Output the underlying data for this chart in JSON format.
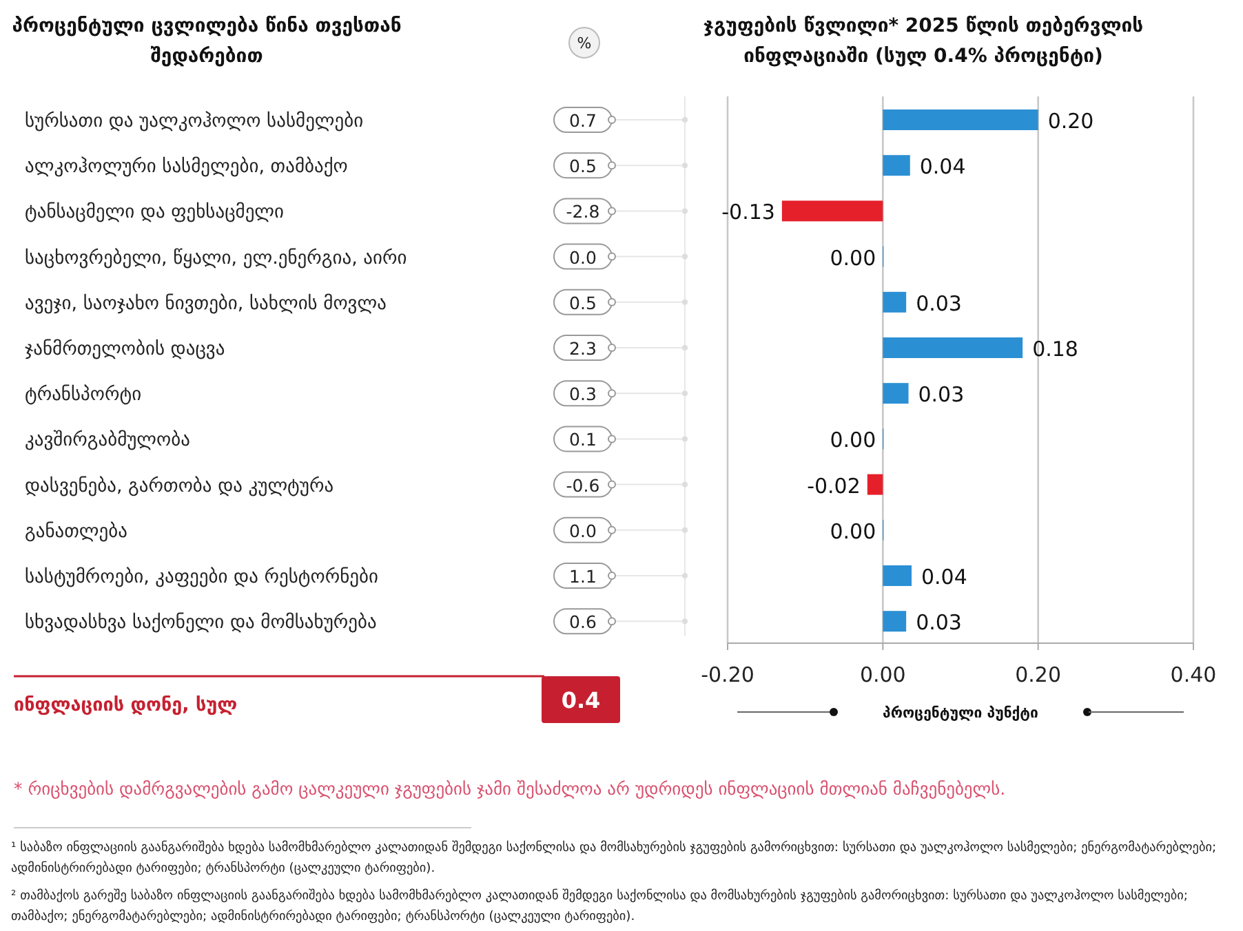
{
  "chart_data": [
    {
      "type": "other",
      "title": "პროცენტული ცვლილება წინა თვესთან შედარებით",
      "categories": [
        "სურსათი და უალკოჰოლო სასმელები",
        "ალკოჰოლური სასმელები, თამბაქო",
        "ტანსაცმელი და ფეხსაცმელი",
        "საცხოვრებელი, წყალი, ელ.ენერგია, აირი",
        "ავეჯი, საოჯახო ნივთები, სახლის მოვლა",
        "ჯანმრთელობის დაცვა",
        "ტრანსპორტი",
        "კავშირგაბმულობა",
        "დასვენება, გართობა და კულტურა",
        "განათლება",
        "სასტუმროები, კაფეები და რესტორნები",
        "სხვადასხვა საქონელი და მომსახურება"
      ],
      "values": [
        0.7,
        0.5,
        -2.8,
        0.0,
        0.5,
        2.3,
        0.3,
        0.1,
        -0.6,
        0.0,
        1.1,
        0.6
      ],
      "value_labels": [
        "0.7",
        "0.5",
        "-2.8",
        "0.0",
        "0.5",
        "2.3",
        "0.3",
        "0.1",
        "-0.6",
        "0.0",
        "1.1",
        "0.6"
      ],
      "annotations": [
        "%",
        "ინფლაციის დონე, სულ",
        "0.4"
      ]
    },
    {
      "type": "bar",
      "orientation": "horizontal",
      "title": "ჯგუფების წვლილი* 2025 წლის თებერვლის ინფლაციაში (სულ 0.4% პროცენტი)",
      "categories": [
        null,
        null,
        null,
        null,
        null,
        null,
        null,
        null,
        null,
        null,
        null,
        null
      ],
      "tick_labels": "x",
      "values": [
        0.2,
        0.035,
        -0.13,
        0.0,
        0.03,
        0.18,
        0.033,
        0.0,
        -0.02,
        0.0,
        0.037,
        0.03
      ],
      "value_labels": [
        "0.20",
        "0.04",
        "-0.13",
        "0.00",
        "0.03",
        "0.18",
        "0.03",
        "0.00",
        "-0.02",
        "0.00",
        "0.04",
        "0.03"
      ],
      "colors": [
        "#2b8fd4",
        "#2b8fd4",
        "#e5202b",
        "#2b8fd4",
        "#2b8fd4",
        "#2b8fd4",
        "#2b8fd4",
        "#2b8fd4",
        "#e5202b",
        "#2b8fd4",
        "#2b8fd4",
        "#2b8fd4"
      ],
      "xlim": [
        -0.2,
        0.4
      ],
      "xticks": [
        {
          "value": -0.2,
          "label": "-0.20"
        },
        {
          "value": 0,
          "label": "0.00"
        },
        {
          "value": 0.2,
          "label": "0.20"
        },
        {
          "value": 0.4,
          "label": "0.40"
        }
      ],
      "grid": "x",
      "xlabel": "პროცენტული პუნქტი",
      "annotations": [
        "* რიცხვების დამრგვალების გამო ცალკეული ჯგუფების ჯამი შესაძლოა არ უდრიდეს ინფლაციის მთლიან მაჩვენებელს.",
        "¹ საბაზო ინფლაციის გაანგარიშება ხდება სამომხმარებლო კალათიდან შემდეგი საქონლისა და მომსახურების ჯგუფების გამორიცხვით: სურსათი და უალკოჰოლო სასმელები; ენერგომატარებლები; ადმინისტრირებადი ტარიფები; ტრანსპორტი (ცალკეული ტარიფები).",
        "² თამბაქოს გარეშე საბაზო ინფლაციის გაანგარიშება ხდება სამომხმარებლო კალათიდან შემდეგი საქონლისა და მომსახურების ჯგუფების გამორიცხვით: სურსათი და უალკოჰოლო სასმელები; თამბაქო; ენერგომატარებლები; ადმინისტრირებადი ტარიფები; ტრანსპორტი (ცალკეული ტარიფები)."
      ]
    }
  ]
}
